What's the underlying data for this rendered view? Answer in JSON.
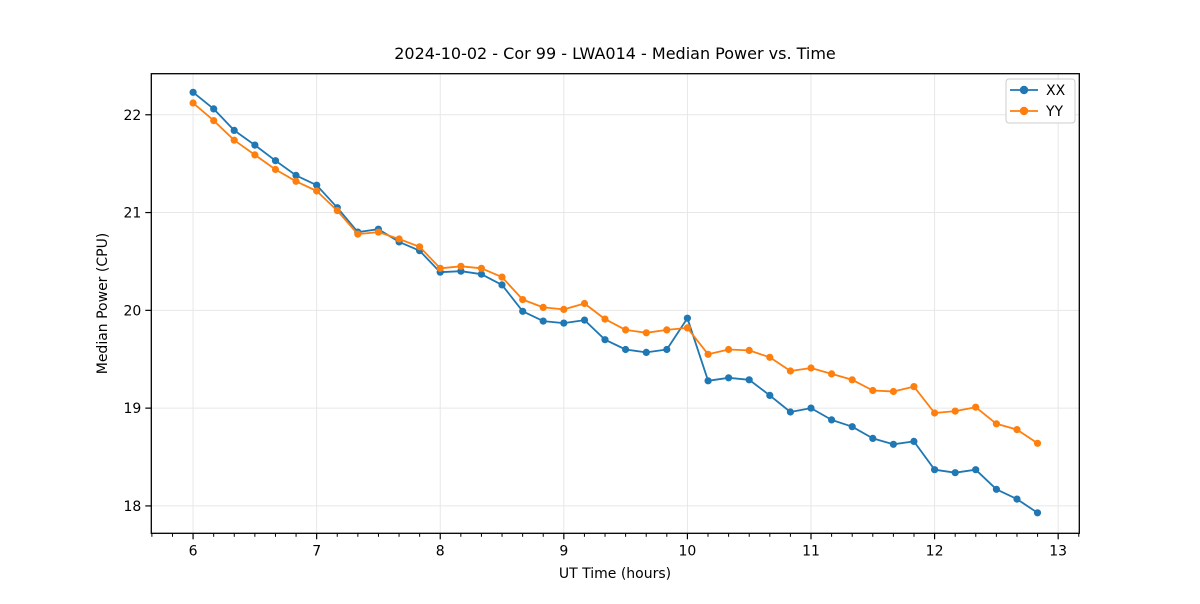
{
  "chart_data": {
    "type": "line",
    "title": "2024-10-02 - Cor 99 - LWA014 - Median Power vs. Time",
    "xlabel": "UT Time (hours)",
    "ylabel": "Median Power (CPU)",
    "xlim": [
      5.662,
      13.171
    ],
    "ylim": [
      17.72,
      22.42
    ],
    "x_ticks": [
      6,
      7,
      8,
      9,
      10,
      11,
      12,
      13
    ],
    "y_ticks": [
      18,
      19,
      20,
      21,
      22
    ],
    "x_minor_step": 0.166667,
    "grid": true,
    "grid_color": "#e7e7e7",
    "legend_position": "upper right",
    "x": [
      6.0,
      6.167,
      6.333,
      6.5,
      6.667,
      6.833,
      7.0,
      7.167,
      7.333,
      7.5,
      7.667,
      7.833,
      8.0,
      8.167,
      8.333,
      8.5,
      8.667,
      8.833,
      9.0,
      9.167,
      9.333,
      9.5,
      9.667,
      9.833,
      10.0,
      10.167,
      10.333,
      10.5,
      10.667,
      10.833,
      11.0,
      11.167,
      11.333,
      11.5,
      11.667,
      11.833,
      12.0,
      12.167,
      12.333,
      12.5,
      12.667,
      12.833
    ],
    "series": [
      {
        "name": "XX",
        "color": "#1f77b4",
        "values": [
          22.23,
          22.06,
          21.84,
          21.69,
          21.53,
          21.38,
          21.28,
          21.05,
          20.8,
          20.83,
          20.7,
          20.61,
          20.39,
          20.4,
          20.37,
          20.26,
          19.99,
          19.89,
          19.87,
          19.9,
          19.7,
          19.6,
          19.57,
          19.6,
          19.92,
          19.28,
          19.31,
          19.29,
          19.13,
          18.96,
          19.0,
          18.88,
          18.81,
          18.69,
          18.63,
          18.66,
          18.37,
          18.34,
          18.37,
          18.17,
          18.07,
          17.93
        ]
      },
      {
        "name": "YY",
        "color": "#ff7f0e",
        "values": [
          22.12,
          21.94,
          21.74,
          21.59,
          21.44,
          21.32,
          21.22,
          21.02,
          20.78,
          20.8,
          20.73,
          20.65,
          20.43,
          20.45,
          20.43,
          20.34,
          20.11,
          20.03,
          20.01,
          20.07,
          19.91,
          19.8,
          19.77,
          19.8,
          19.82,
          19.55,
          19.6,
          19.59,
          19.52,
          19.38,
          19.41,
          19.35,
          19.29,
          19.18,
          19.17,
          19.22,
          18.95,
          18.97,
          19.01,
          18.84,
          18.78,
          18.64
        ]
      }
    ]
  }
}
